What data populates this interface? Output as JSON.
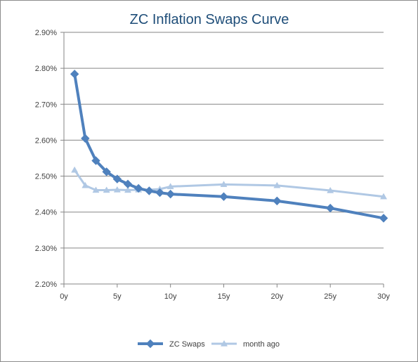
{
  "chart_data": {
    "type": "line",
    "title": "ZC Inflation Swaps Curve",
    "xlabel": "",
    "ylabel": "",
    "x_tick_labels": [
      {
        "value": 0,
        "label": "0y"
      },
      {
        "value": 5,
        "label": "5y"
      },
      {
        "value": 10,
        "label": "10y"
      },
      {
        "value": 15,
        "label": "15y"
      },
      {
        "value": 20,
        "label": "20y"
      },
      {
        "value": 25,
        "label": "25y"
      },
      {
        "value": 30,
        "label": "30y"
      }
    ],
    "y_tick_labels": [
      {
        "value": 2.2,
        "label": "2.20%"
      },
      {
        "value": 2.3,
        "label": "2.30%"
      },
      {
        "value": 2.4,
        "label": "2.40%"
      },
      {
        "value": 2.5,
        "label": "2.50%"
      },
      {
        "value": 2.6,
        "label": "2.60%"
      },
      {
        "value": 2.7,
        "label": "2.70%"
      },
      {
        "value": 2.8,
        "label": "2.80%"
      },
      {
        "value": 2.9,
        "label": "2.90%"
      }
    ],
    "xlim": [
      0,
      30
    ],
    "ylim": [
      2.2,
      2.9
    ],
    "grid": "horizontal",
    "legend_position": "bottom",
    "series": [
      {
        "name": "ZC Swaps",
        "color": "#4f81bd",
        "marker": "diamond",
        "x": [
          1,
          2,
          3,
          4,
          5,
          6,
          7,
          8,
          9,
          10,
          15,
          20,
          25,
          30
        ],
        "values": [
          2.784,
          2.605,
          2.543,
          2.512,
          2.492,
          2.478,
          2.466,
          2.459,
          2.454,
          2.45,
          2.443,
          2.431,
          2.411,
          2.383
        ]
      },
      {
        "name": "month ago",
        "color": "#b0c8e4",
        "marker": "triangle",
        "x": [
          1,
          2,
          3,
          4,
          5,
          6,
          7,
          8,
          9,
          10,
          15,
          20,
          25,
          30
        ],
        "values": [
          2.517,
          2.474,
          2.461,
          2.461,
          2.462,
          2.461,
          2.462,
          2.462,
          2.464,
          2.471,
          2.477,
          2.474,
          2.46,
          2.443
        ]
      }
    ]
  }
}
